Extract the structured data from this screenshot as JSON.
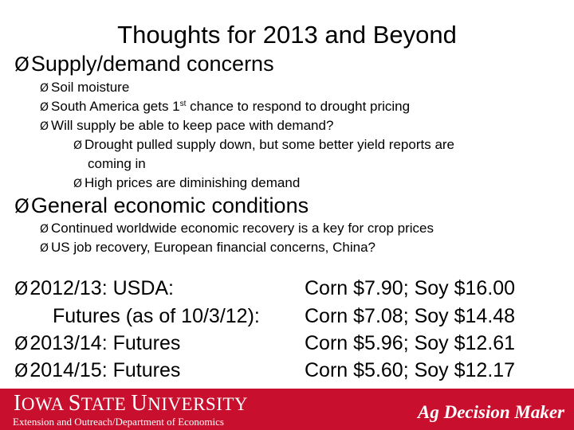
{
  "slide": {
    "title": "Thoughts for 2013 and Beyond",
    "bullet_icon": "arrow-bullet-icon",
    "bullet_glyph": "Ø"
  },
  "sections": {
    "supply": {
      "heading": "Supply/demand concerns",
      "items": {
        "soil": "Soil moisture",
        "sa_pre": "South America gets 1",
        "sa_sup": "st",
        "sa_post": " chance to respond to drought pricing",
        "will": "Will supply be able to keep pace with demand?",
        "drought_line1": "Drought pulled supply down, but some better yield reports are",
        "drought_line2": "coming in",
        "high": "High prices are diminishing demand"
      }
    },
    "economic": {
      "heading": "General economic conditions",
      "items": {
        "continued": "Continued worldwide economic recovery is a key for crop prices",
        "us": "US job recovery, European financial concerns, China?"
      }
    }
  },
  "prices": [
    {
      "label": "2012/13:  USDA:",
      "value": "Corn $7.90; Soy $16.00"
    },
    {
      "label": "Futures (as of 10/3/12):",
      "value": "Corn $7.08; Soy $14.48"
    },
    {
      "label": "2013/14:  Futures",
      "value": "Corn $5.96; Soy $12.61"
    },
    {
      "label": "2014/15:  Futures",
      "value": "Corn $5.60; Soy $12.17"
    }
  ],
  "footer": {
    "brand_i": "I",
    "brand_owa": "OWA ",
    "brand_s": "S",
    "brand_tate": "TATE ",
    "brand_u": "U",
    "brand_niversity": "NIVERSITY",
    "department": "Extension and Outreach/Department of Economics",
    "program": "Ag Decision Maker",
    "colors": {
      "background": "#c8102e",
      "text": "#ffffff"
    }
  }
}
